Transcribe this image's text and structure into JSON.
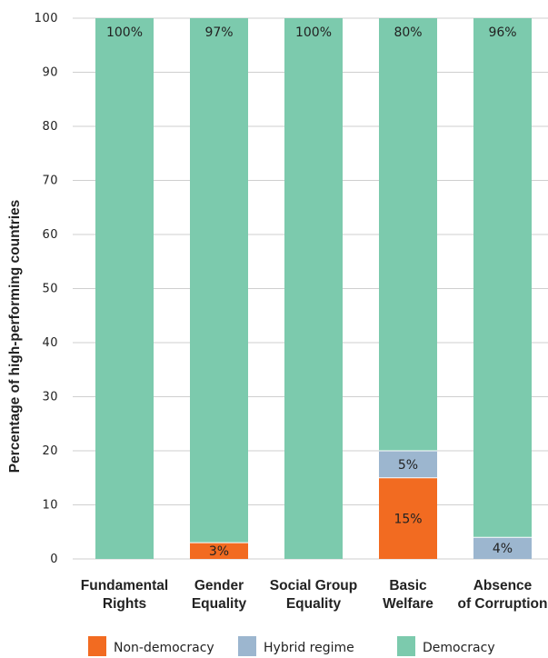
{
  "chart_data": {
    "type": "bar",
    "stacked": true,
    "ylabel": "Percentage of high-performing countries",
    "ylim": [
      0,
      100
    ],
    "yticks": [
      0,
      10,
      20,
      30,
      40,
      50,
      60,
      70,
      80,
      90,
      100
    ],
    "grid": true,
    "legend_position": "bottom",
    "categories": [
      [
        "Fundamental",
        "Rights"
      ],
      [
        "Gender",
        "Equality"
      ],
      [
        "Social Group",
        "Equality"
      ],
      [
        "Basic",
        "Welfare"
      ],
      [
        "Absence",
        "of Corruption"
      ]
    ],
    "series": [
      {
        "name": "Non-democracy",
        "color": "#f26b21",
        "values": [
          0,
          3,
          0,
          15,
          0
        ],
        "labels": [
          "",
          "3%",
          "",
          "15%",
          ""
        ]
      },
      {
        "name": "Hybrid regime",
        "color": "#9cb6cf",
        "values": [
          0,
          0,
          0,
          5,
          4
        ],
        "labels": [
          "",
          "",
          "",
          "5%",
          "4%"
        ]
      },
      {
        "name": "Democracy",
        "color": "#7ccaad",
        "values": [
          100,
          97,
          100,
          80,
          96
        ],
        "labels": [
          "100%",
          "97%",
          "100%",
          "80%",
          "96%"
        ]
      }
    ]
  }
}
